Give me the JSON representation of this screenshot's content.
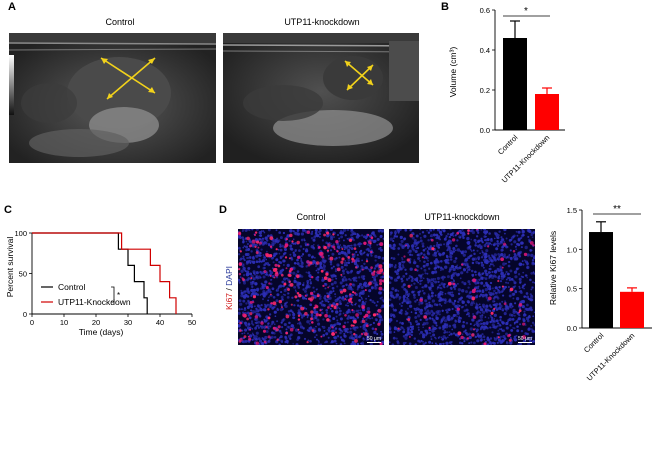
{
  "panels": {
    "A": {
      "letter": "A",
      "left_label": "Control",
      "right_label": "UTP11-knockdown"
    },
    "B": {
      "letter": "B",
      "chart_data": {
        "type": "bar",
        "categories": [
          "Control",
          "UTP11-Knockdown"
        ],
        "values": [
          0.46,
          0.18
        ],
        "errors": [
          0.085,
          0.03
        ],
        "colors": [
          "#000000",
          "#ff0000"
        ],
        "ylabel": "Volume (cm³)",
        "ylim": [
          0,
          0.6
        ],
        "yticks": [
          "0.0",
          "0.2",
          "0.4",
          "0.6"
        ],
        "significance": "*"
      }
    },
    "C": {
      "letter": "C",
      "chart_data": {
        "type": "line",
        "ylabel": "Percent survival",
        "xlabel": "Time (days)",
        "xlim": [
          0,
          50
        ],
        "ylim": [
          0,
          100
        ],
        "xticks": [
          "0",
          "10",
          "20",
          "30",
          "40",
          "50"
        ],
        "yticks": [
          "0",
          "50",
          "100"
        ],
        "series": [
          {
            "name": "Control",
            "color": "#000000",
            "steps": [
              [
                0,
                100
              ],
              [
                27,
                100
              ],
              [
                27,
                80
              ],
              [
                30,
                80
              ],
              [
                30,
                60
              ],
              [
                32,
                60
              ],
              [
                32,
                40
              ],
              [
                35,
                40
              ],
              [
                35,
                20
              ],
              [
                36,
                20
              ],
              [
                36,
                0
              ]
            ]
          },
          {
            "name": "UTP11-Knockdown",
            "color": "#d00000",
            "steps": [
              [
                0,
                100
              ],
              [
                28,
                100
              ],
              [
                28,
                80
              ],
              [
                37,
                80
              ],
              [
                37,
                60
              ],
              [
                40,
                60
              ],
              [
                40,
                40
              ],
              [
                43,
                40
              ],
              [
                43,
                20
              ],
              [
                45,
                20
              ],
              [
                45,
                0
              ]
            ]
          }
        ],
        "significance": "*"
      }
    },
    "D": {
      "letter": "D",
      "left_label": "Control",
      "right_label": "UTP11-knockdown",
      "stain_ki67": "Ki67",
      "stain_sep": " / ",
      "stain_dapi": "DAPI",
      "scale_bar": "50 μm",
      "chart_data": {
        "type": "bar",
        "categories": [
          "Control",
          "UTP11-Knockdown"
        ],
        "values": [
          1.22,
          0.46
        ],
        "errors": [
          0.13,
          0.05
        ],
        "colors": [
          "#000000",
          "#ff0000"
        ],
        "ylabel": "Relative Ki67 levels",
        "ylim": [
          0,
          1.5
        ],
        "yticks": [
          "0.0",
          "0.5",
          "1.0",
          "1.5"
        ],
        "significance": "**"
      }
    }
  }
}
